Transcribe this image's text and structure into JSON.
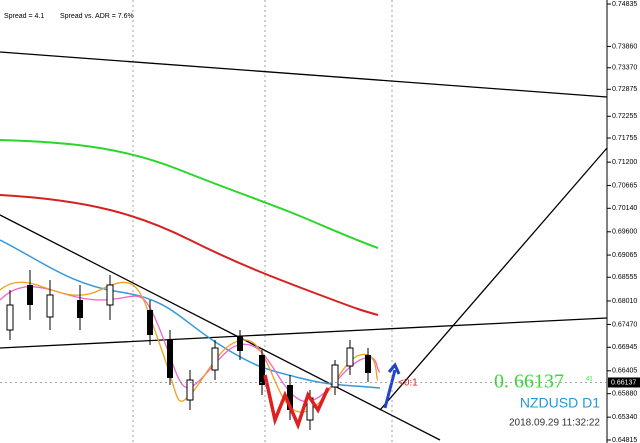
{
  "header": {
    "spread": "Spread = 4.1",
    "spread_adr": "Spread vs. ADR = 7.6%"
  },
  "chart_data": {
    "type": "candlestick",
    "symbol": "NZDUSD D1",
    "timestamp": "2018.09.29 11:32:22",
    "price_display": "0. 66137",
    "price_small": "41",
    "price": 0.66137,
    "arrow_label": "<0:1",
    "ylim": [
      0.64815,
      0.74835
    ],
    "yticks": [
      0.74835,
      {
        "value": 0.7386,
        "label": "0.73860"
      },
      {
        "value": 0.7337,
        "label": "0.73370"
      },
      0.72875,
      0.72255,
      0.71755,
      {
        "value": 0.712,
        "label": "0.71200"
      },
      0.70665,
      {
        "value": 0.7014,
        "label": "0.70140"
      },
      {
        "value": 0.696,
        "label": "0.69600"
      },
      0.69065,
      0.68555,
      {
        "value": 0.6801,
        "label": "0.68010"
      },
      {
        "value": 0.6747,
        "label": "0.67470"
      },
      0.66945,
      0.66405,
      {
        "value": 0.6588,
        "label": "0.65880"
      },
      {
        "value": 0.6534,
        "label": "0.65340"
      },
      0.64815
    ]
  }
}
